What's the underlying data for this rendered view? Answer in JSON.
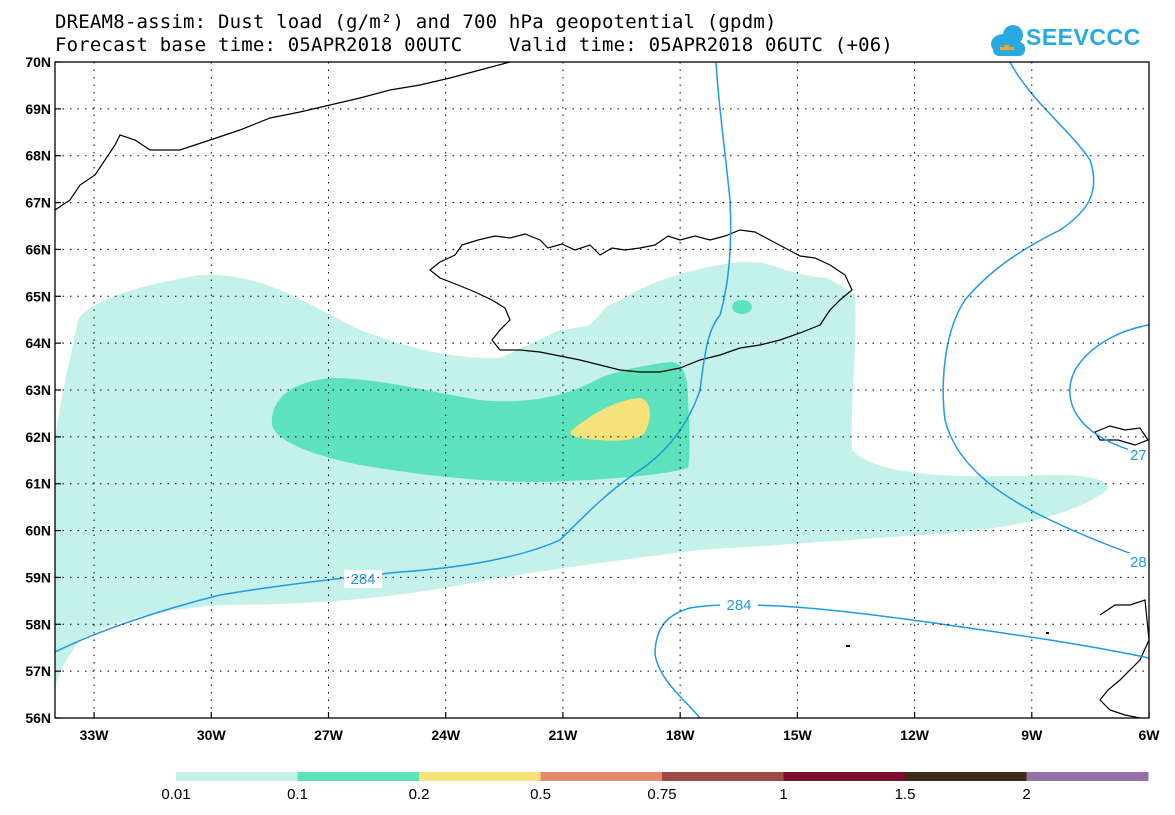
{
  "header": {
    "title_line1": "DREAM8-assim: Dust load (g/m²) and 700 hPa geopotential (gpdm)",
    "title_line2": "Forecast base time: 05APR2018 00UTC    Valid time: 05APR2018 06UTC (+06)"
  },
  "logo": {
    "text": "SEEVCCC",
    "color": "#27a9e1"
  },
  "axes": {
    "lat_labels": [
      "70N",
      "69N",
      "68N",
      "67N",
      "66N",
      "65N",
      "64N",
      "63N",
      "62N",
      "61N",
      "60N",
      "59N",
      "58N",
      "57N",
      "56N"
    ],
    "lon_labels": [
      "33W",
      "30W",
      "27W",
      "24W",
      "21W",
      "18W",
      "15W",
      "12W",
      "9W",
      "6W"
    ],
    "lat_range": [
      56,
      70
    ],
    "lon_range": [
      -34,
      -6
    ],
    "grid": "dotted"
  },
  "contours": {
    "labels": [
      "284",
      "284",
      "27",
      "28"
    ],
    "color": "#1e9ae6"
  },
  "colorbar": {
    "ticks": [
      "0.01",
      "0.1",
      "0.2",
      "0.5",
      "0.75",
      "1",
      "1.5",
      "2"
    ],
    "colors": [
      "#c4f1e9",
      "#5ee2bb",
      "#f6e27a",
      "#e48a6b",
      "#9f4b45",
      "#7d0d2f",
      "#3d2a19",
      "#9472a6"
    ]
  },
  "dust_colors": {
    "level1": "#c4f1e9",
    "level2": "#5ee2bb",
    "level3": "#f6e27a"
  }
}
